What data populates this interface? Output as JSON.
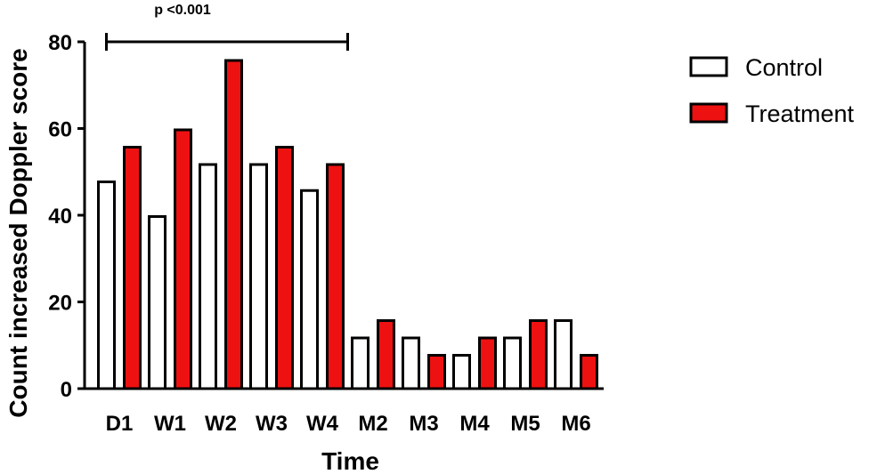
{
  "chart_data": {
    "type": "bar",
    "title": "",
    "xlabel": "Time",
    "ylabel": "Count increased Doppler score",
    "categories": [
      "D1",
      "W1",
      "W2",
      "W3",
      "W4",
      "M2",
      "M3",
      "M4",
      "M5",
      "M6"
    ],
    "series": [
      {
        "name": "Control",
        "color": "#ffffff",
        "values": [
          48,
          40,
          52,
          52,
          46,
          12,
          12,
          8,
          12,
          16
        ]
      },
      {
        "name": "Treatment",
        "color": "#ee1111",
        "values": [
          56,
          60,
          76,
          56,
          52,
          16,
          8,
          12,
          16,
          8
        ]
      }
    ],
    "ylim": [
      0,
      80
    ],
    "yticks": [
      0,
      20,
      40,
      60,
      80
    ],
    "grid": false,
    "legend_position": "right",
    "annotation": {
      "text": "p <0.001",
      "from_category": "D1",
      "to_category": "W4"
    }
  }
}
